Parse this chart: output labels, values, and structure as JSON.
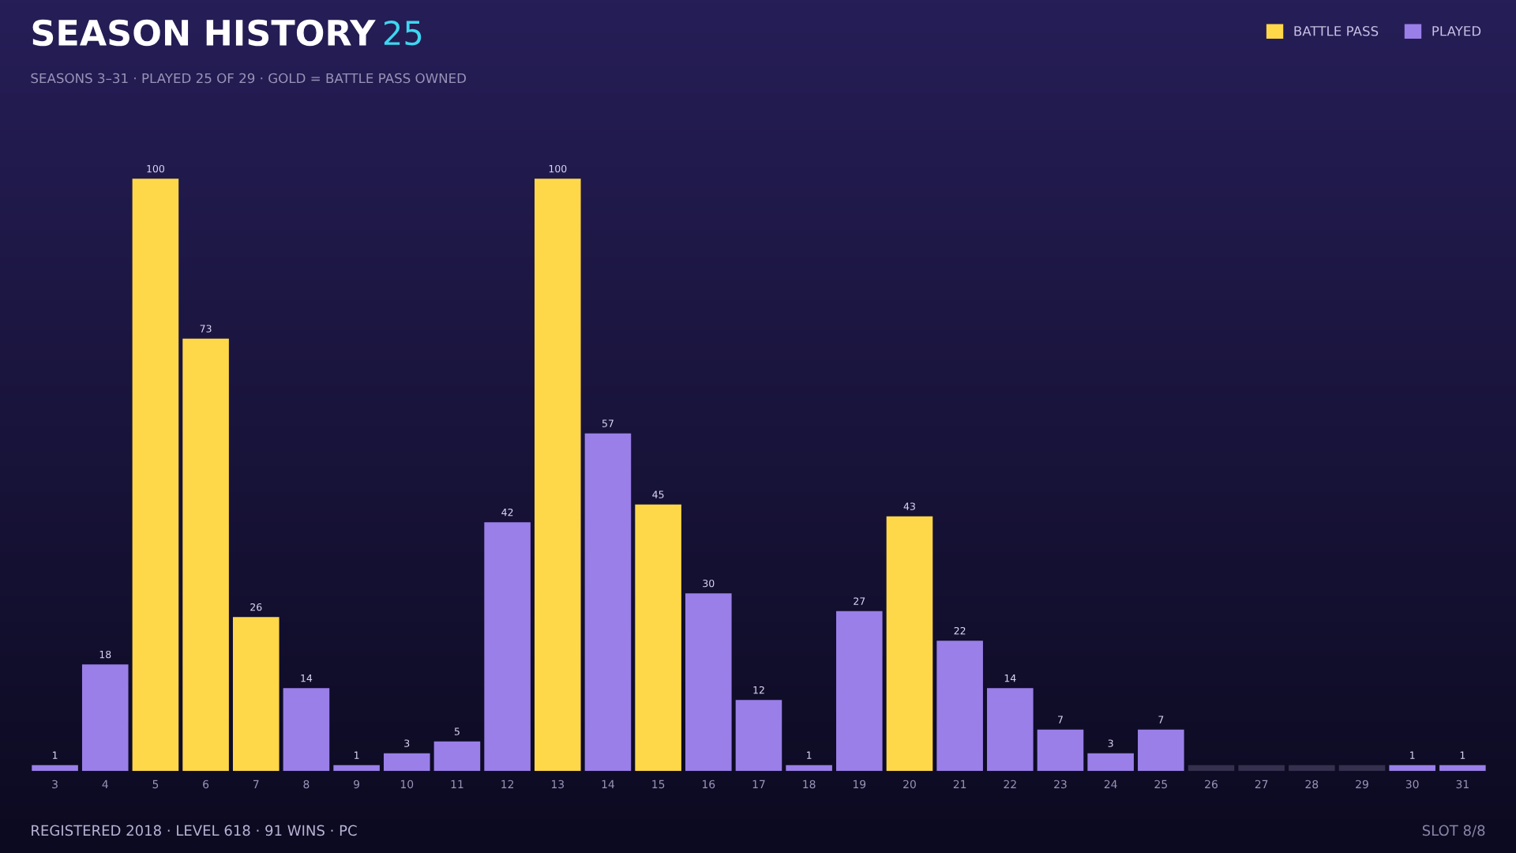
{
  "chart_data": {
    "type": "bar",
    "title": "SEASON HISTORY",
    "subtitle": "SEASONS 3–31 · PLAYED 25 OF 29 · GOLD = BATTLE PASS OWNED",
    "annotations": [
      "25",
      "REGISTERED 2018 · LEVEL 618 · 91 WINS · PC",
      "SLOT 8/8"
    ],
    "categories": [
      "3",
      "4",
      "5",
      "6",
      "7",
      "8",
      "9",
      "10",
      "11",
      "12",
      "13",
      "14",
      "15",
      "16",
      "17",
      "18",
      "19",
      "20",
      "21",
      "22",
      "23",
      "24",
      "25",
      "26",
      "27",
      "28",
      "29",
      "30",
      "31"
    ],
    "series": [
      {
        "name": "BATTLE PASS",
        "color": "#ffd84a",
        "values": [
          null,
          null,
          100,
          73,
          26,
          null,
          null,
          null,
          null,
          null,
          100,
          null,
          45,
          null,
          null,
          null,
          null,
          43,
          null,
          null,
          null,
          null,
          null,
          null,
          null,
          null,
          null,
          null,
          null
        ],
        "value_labels": [
          null,
          null,
          "100",
          "73",
          "26",
          null,
          null,
          null,
          null,
          null,
          "100",
          null,
          "45",
          null,
          null,
          null,
          null,
          "43",
          null,
          null,
          null,
          null,
          null,
          null,
          null,
          null,
          null,
          null,
          null
        ]
      },
      {
        "name": "PLAYED",
        "color": "#9a7fe8",
        "values": [
          1,
          18,
          null,
          null,
          null,
          14,
          1,
          3,
          5,
          42,
          null,
          57,
          null,
          30,
          12,
          1,
          27,
          null,
          22,
          14,
          7,
          3,
          7,
          null,
          null,
          null,
          null,
          1,
          1
        ],
        "value_labels": [
          "1",
          "18",
          null,
          null,
          null,
          "14",
          "1",
          "3",
          "5",
          "42",
          null,
          "57",
          null,
          "30",
          "12",
          "1",
          "27",
          null,
          "22",
          "14",
          "7",
          "3",
          "7",
          null,
          null,
          null,
          null,
          "1",
          "1"
        ]
      },
      {
        "color": "#34304d",
        "values": [
          null,
          null,
          null,
          null,
          null,
          null,
          null,
          null,
          null,
          null,
          null,
          null,
          null,
          null,
          null,
          null,
          null,
          null,
          null,
          null,
          null,
          null,
          null,
          1,
          1,
          1,
          1,
          null,
          null
        ]
      }
    ],
    "legend": "top right",
    "grid": false
  }
}
